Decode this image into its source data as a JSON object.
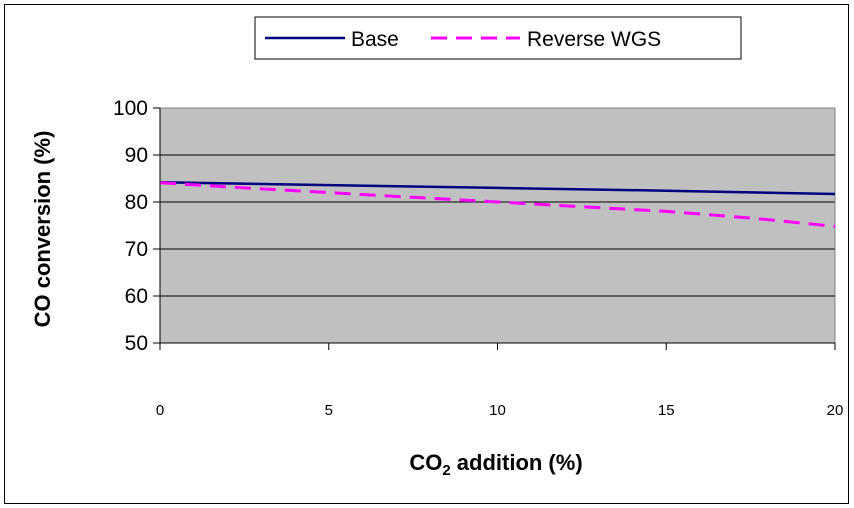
{
  "chart_data": {
    "type": "line",
    "title": "",
    "xlabel": "CO₂ addition (%)",
    "xlabel_main": "CO",
    "xlabel_sub": "2",
    "xlabel_rest": " addition (%)",
    "ylabel": "CO conversion (%)",
    "xlim": [
      0,
      20
    ],
    "ylim": [
      50,
      100
    ],
    "x_ticks": [
      "0",
      "5",
      "10",
      "15",
      "20"
    ],
    "y_ticks": [
      "100",
      "90",
      "80",
      "70",
      "60",
      "50"
    ],
    "grid": true,
    "legend_position": "top",
    "plot_background": "#c0c0c0",
    "series": [
      {
        "name": "Base",
        "color": "#000080",
        "style": "solid",
        "x": [
          0,
          5,
          10,
          15,
          20
        ],
        "y": [
          84.2,
          83.6,
          83.0,
          82.4,
          81.7
        ]
      },
      {
        "name": "Reverse WGS",
        "color": "#ff00ff",
        "style": "dashed",
        "x": [
          0,
          2.5,
          5,
          7.5,
          10,
          12.5,
          15,
          17.5,
          20
        ],
        "y": [
          84.1,
          83.0,
          82.0,
          81.0,
          80.0,
          79.0,
          78.0,
          76.6,
          74.8
        ]
      }
    ]
  }
}
